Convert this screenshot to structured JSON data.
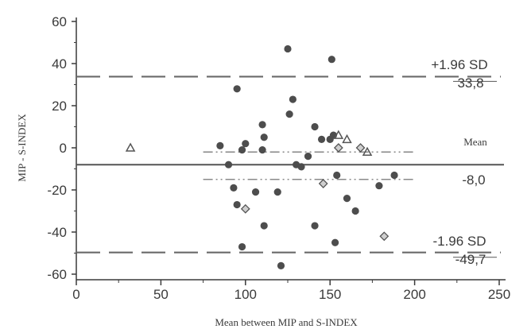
{
  "chart_data": {
    "type": "scatter",
    "title": "",
    "xlabel": "Mean between MIP and S-INDEX",
    "ylabel": "MIP - S-INDEX",
    "xlim": [
      0,
      250
    ],
    "ylim": [
      -63,
      63
    ],
    "xticks": [
      0,
      50,
      100,
      150,
      200,
      250
    ],
    "yticks": [
      -60,
      -40,
      -20,
      0,
      20,
      40,
      60
    ],
    "grid": false,
    "reference_lines": {
      "upper_loa": {
        "value": 33.8,
        "label": "+1.96 SD",
        "value_label": "33,8"
      },
      "mean": {
        "value": -8.0,
        "label": "Mean",
        "value_label": "-8,0"
      },
      "lower_loa": {
        "value": -49.7,
        "label": "-1.96 SD",
        "value_label": "-49,7"
      },
      "ci_upper": {
        "value": -2
      },
      "ci_lower": {
        "value": -15
      }
    },
    "series": [
      {
        "marker": "circle",
        "points": [
          [
            95,
            28
          ],
          [
            125,
            47
          ],
          [
            128,
            23
          ],
          [
            126,
            16
          ],
          [
            151,
            42
          ],
          [
            110,
            11
          ],
          [
            111,
            5
          ],
          [
            100,
            2
          ],
          [
            141,
            10
          ],
          [
            145,
            4
          ],
          [
            150,
            4
          ],
          [
            152,
            6
          ],
          [
            85,
            1
          ],
          [
            98,
            -1
          ],
          [
            110,
            -1
          ],
          [
            137,
            -4
          ],
          [
            90,
            -8
          ],
          [
            130,
            -8
          ],
          [
            133,
            -9
          ],
          [
            154,
            -13
          ],
          [
            179,
            -18
          ],
          [
            188,
            -13
          ],
          [
            93,
            -19
          ],
          [
            106,
            -21
          ],
          [
            119,
            -21
          ],
          [
            160,
            -24
          ],
          [
            165,
            -30
          ],
          [
            95,
            -27
          ],
          [
            111,
            -37
          ],
          [
            141,
            -37
          ],
          [
            153,
            -45
          ],
          [
            98,
            -47
          ],
          [
            121,
            -56
          ]
        ]
      },
      {
        "marker": "triangle",
        "points": [
          [
            32,
            0
          ],
          [
            155,
            6
          ],
          [
            160,
            4
          ],
          [
            172,
            -2
          ]
        ]
      },
      {
        "marker": "diamond",
        "points": [
          [
            100,
            -29
          ],
          [
            146,
            -17
          ],
          [
            182,
            -42
          ],
          [
            168,
            0
          ],
          [
            155,
            0
          ]
        ]
      }
    ]
  }
}
